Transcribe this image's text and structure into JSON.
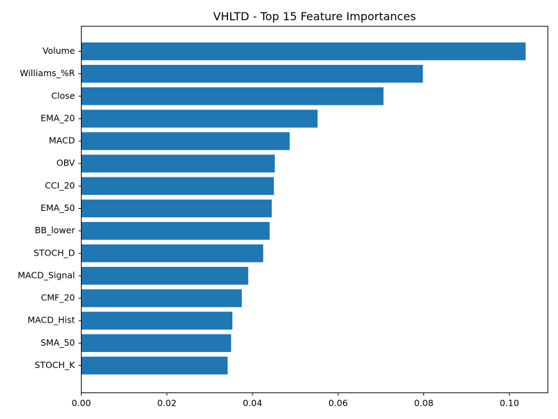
{
  "chart_data": {
    "type": "bar",
    "orientation": "horizontal",
    "title": "VHLTD - Top 15 Feature Importances",
    "xlabel": "",
    "ylabel": "",
    "categories": [
      "Volume",
      "Williams_%R",
      "Close",
      "EMA_20",
      "MACD",
      "OBV",
      "CCI_20",
      "EMA_50",
      "BB_lower",
      "STOCH_D",
      "MACD_Signal",
      "CMF_20",
      "MACD_Hist",
      "SMA_50",
      "STOCH_K"
    ],
    "values": [
      0.1038,
      0.0798,
      0.0706,
      0.0552,
      0.0487,
      0.0452,
      0.045,
      0.0445,
      0.044,
      0.0425,
      0.039,
      0.0375,
      0.0353,
      0.035,
      0.0342
    ],
    "xlim": [
      0,
      0.109
    ],
    "xticks": [
      0.0,
      0.02,
      0.04,
      0.06,
      0.08,
      0.1
    ],
    "xtick_labels": [
      "0.00",
      "0.02",
      "0.04",
      "0.06",
      "0.08",
      "0.10"
    ],
    "bar_color": "#1f77b4",
    "grid": false,
    "legend": "none"
  }
}
